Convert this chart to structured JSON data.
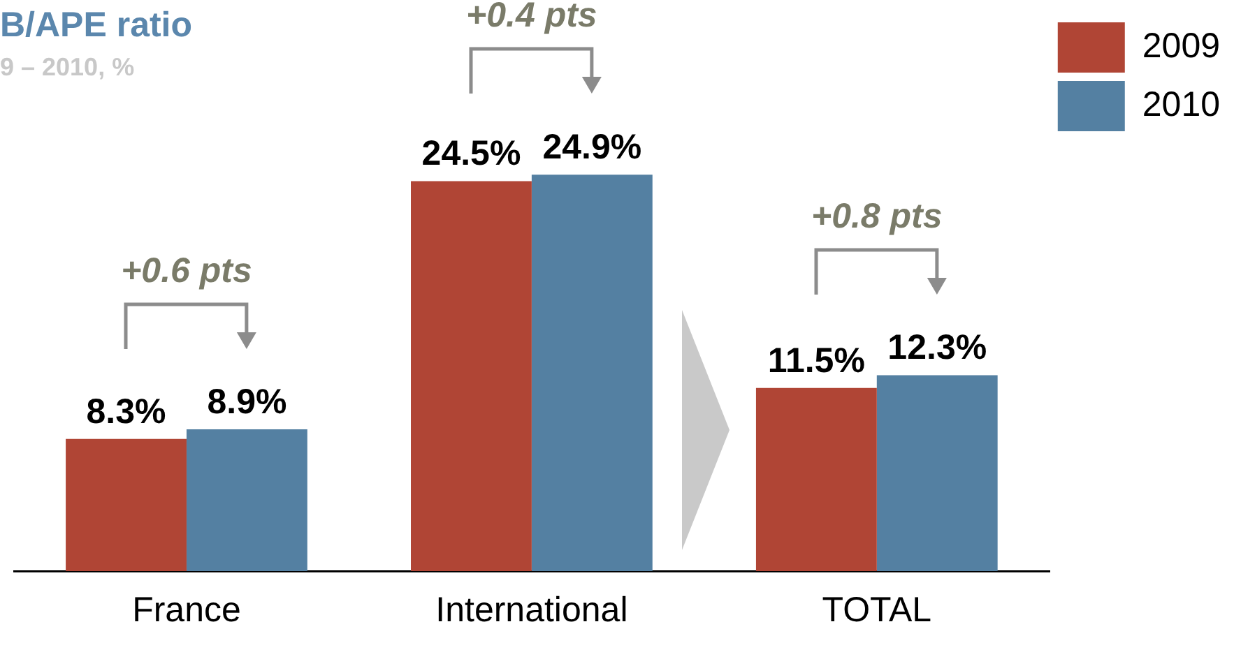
{
  "chart_data": {
    "type": "bar",
    "title": "B/APE ratio",
    "subtitle": "9 – 2010, %",
    "categories": [
      "France",
      "International",
      "TOTAL"
    ],
    "series": [
      {
        "name": "2009",
        "color": "#b04535",
        "values": [
          8.3,
          24.5,
          11.5
        ],
        "value_labels": [
          "8.3%",
          "24.5%",
          "11.5%"
        ]
      },
      {
        "name": "2010",
        "color": "#5480a2",
        "values": [
          8.9,
          24.9,
          12.3
        ],
        "value_labels": [
          "8.9%",
          "24.9%",
          "12.3%"
        ]
      }
    ],
    "annotations": [
      "+0.6 pts",
      "+0.4 pts",
      "+0.8 pts"
    ],
    "grid": false,
    "legend": "top right"
  }
}
